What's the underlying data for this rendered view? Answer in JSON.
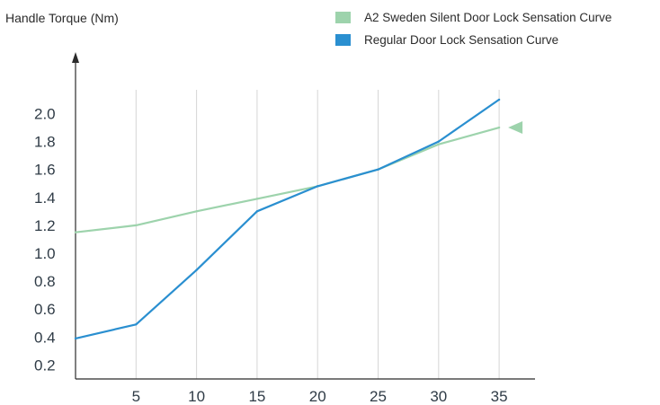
{
  "chart_data": {
    "type": "line",
    "ylabel": "Handle Torque (Nm)",
    "xlabel": "",
    "title": "",
    "x_ticks": [
      5,
      10,
      15,
      20,
      25,
      30,
      35
    ],
    "y_ticks": [
      "0.2",
      "0.4",
      "0.6",
      "0.8",
      "1.0",
      "1.2",
      "1.4",
      "1.6",
      "1.8",
      "2.0"
    ],
    "xlim": [
      0,
      35
    ],
    "ylim": [
      0.1,
      2.2
    ],
    "grid": "vertical lines at x ticks",
    "legend_position": "top-right",
    "series": [
      {
        "name": "A2 Sweden Silent Door Lock Sensation Curve",
        "color": "#9dd3ac",
        "x": [
          0,
          5,
          10,
          15,
          20,
          25,
          30,
          35
        ],
        "y": [
          1.15,
          1.2,
          1.3,
          1.39,
          1.48,
          1.6,
          1.78,
          1.9
        ]
      },
      {
        "name": "Regular Door Lock Sensation Curve",
        "color": "#2a8fd0",
        "x": [
          0,
          5,
          10,
          15,
          20,
          25,
          30,
          35
        ],
        "y": [
          0.39,
          0.49,
          0.88,
          1.3,
          1.48,
          1.6,
          1.8,
          2.1
        ]
      }
    ]
  }
}
